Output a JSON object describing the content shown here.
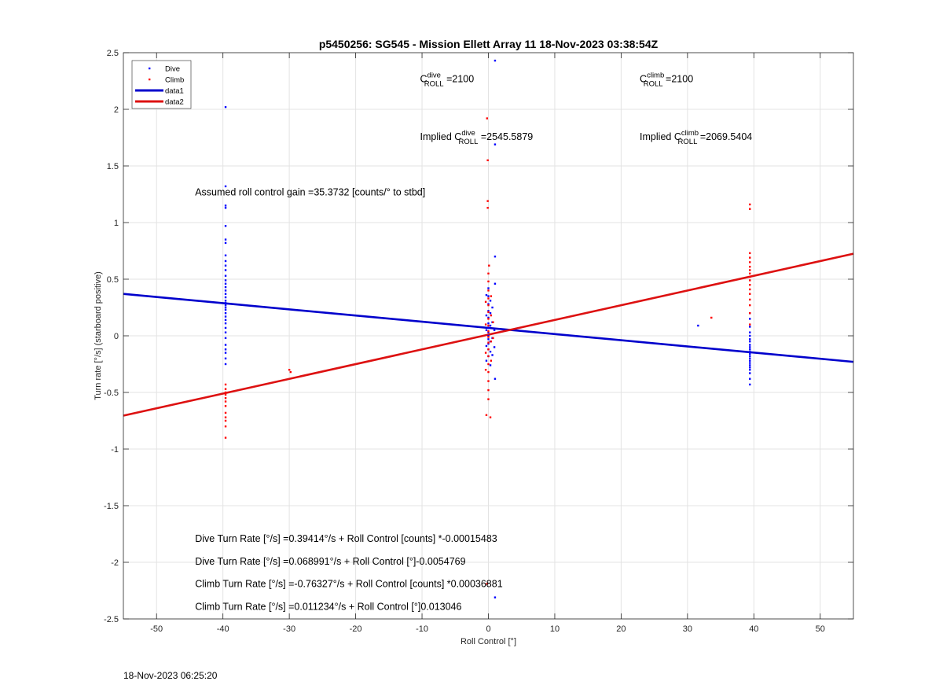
{
  "footer_timestamp": "18-Nov-2023 06:25:20",
  "chart_data": {
    "type": "scatter",
    "title": "p5450256: SG545 - Mission Ellett Array 11 18-Nov-2023 03:38:54Z",
    "xlabel": "Roll Control [°]",
    "ylabel": "Turn rate [°/s] (starboard positive)",
    "xlim": [
      -55,
      55
    ],
    "ylim": [
      -2.5,
      2.5
    ],
    "xticks": [
      -50,
      -40,
      -30,
      -20,
      -10,
      0,
      10,
      20,
      30,
      40,
      50
    ],
    "yticks": [
      2.5,
      2,
      1.5,
      1,
      0.5,
      0,
      -0.5,
      -1,
      -1.5,
      -2,
      -2.5
    ],
    "grid": true,
    "legend": {
      "location": "top-left",
      "entries": [
        {
          "label": "Dive",
          "style": "marker",
          "color": "#0000ff"
        },
        {
          "label": "Climb",
          "style": "marker",
          "color": "#ff0000"
        },
        {
          "label": "data1",
          "style": "line",
          "color": "#0000cc"
        },
        {
          "label": "data2",
          "style": "line",
          "color": "#dd1111"
        }
      ]
    },
    "lines": [
      {
        "name": "data1",
        "color": "#0000cc",
        "x": [
          -55,
          55
        ],
        "y": [
          0.37,
          -0.23
        ]
      },
      {
        "name": "data2",
        "color": "#dd1111",
        "x": [
          -55,
          55
        ],
        "y": [
          -0.705,
          0.725
        ]
      }
    ],
    "scatter_series": [
      {
        "name": "Dive",
        "color": "#0000ff",
        "points": [
          [
            -39.6,
            2.02
          ],
          [
            -39.6,
            1.32
          ],
          [
            -39.6,
            1.15
          ],
          [
            -39.6,
            1.13
          ],
          [
            -39.6,
            0.97
          ],
          [
            -39.6,
            0.85
          ],
          [
            -39.6,
            0.82
          ],
          [
            -39.6,
            0.71
          ],
          [
            -39.6,
            0.66
          ],
          [
            -39.6,
            0.62
          ],
          [
            -39.6,
            0.58
          ],
          [
            -39.6,
            0.53
          ],
          [
            -39.6,
            0.49
          ],
          [
            -39.6,
            0.46
          ],
          [
            -39.6,
            0.43
          ],
          [
            -39.6,
            0.4
          ],
          [
            -39.6,
            0.37
          ],
          [
            -39.6,
            0.34
          ],
          [
            -39.6,
            0.31
          ],
          [
            -39.6,
            0.29
          ],
          [
            -39.6,
            0.27
          ],
          [
            -39.6,
            0.25
          ],
          [
            -39.6,
            0.23
          ],
          [
            -39.6,
            0.2
          ],
          [
            -39.6,
            0.17
          ],
          [
            -39.6,
            0.14
          ],
          [
            -39.6,
            0.11
          ],
          [
            -39.6,
            0.07
          ],
          [
            -39.6,
            0.03
          ],
          [
            -39.6,
            -0.02
          ],
          [
            -39.6,
            -0.08
          ],
          [
            -39.6,
            -0.12
          ],
          [
            -39.6,
            -0.15
          ],
          [
            -39.6,
            -0.2
          ],
          [
            -39.6,
            -0.25
          ],
          [
            0.0,
            0.42
          ],
          [
            0.0,
            0.35
          ],
          [
            0.0,
            0.28
          ],
          [
            0.0,
            0.22
          ],
          [
            0.0,
            0.16
          ],
          [
            0.0,
            0.11
          ],
          [
            0.0,
            0.07
          ],
          [
            0.0,
            0.03
          ],
          [
            0.0,
            0.0
          ],
          [
            0.0,
            -0.03
          ],
          [
            0.0,
            -0.07
          ],
          [
            0.0,
            -0.12
          ],
          [
            0.0,
            -0.18
          ],
          [
            0.3,
            0.31
          ],
          [
            0.3,
            0.2
          ],
          [
            0.3,
            0.09
          ],
          [
            0.3,
            -0.05
          ],
          [
            0.3,
            -0.14
          ],
          [
            0.3,
            -0.26
          ],
          [
            -0.3,
            0.36
          ],
          [
            -0.3,
            0.18
          ],
          [
            -0.3,
            0.05
          ],
          [
            -0.3,
            -0.09
          ],
          [
            -0.3,
            -0.22
          ],
          [
            0.6,
            0.25
          ],
          [
            0.6,
            0.12
          ],
          [
            0.6,
            -0.02
          ],
          [
            0.6,
            -0.17
          ],
          [
            0.9,
            0.05
          ],
          [
            0.9,
            -0.1
          ],
          [
            1.0,
            2.43
          ],
          [
            1.0,
            1.69
          ],
          [
            1.0,
            0.7
          ],
          [
            1.0,
            0.46
          ],
          [
            1.0,
            -0.38
          ],
          [
            1.0,
            -2.31
          ],
          [
            31.6,
            0.09
          ],
          [
            39.4,
            0.2
          ],
          [
            39.4,
            0.15
          ],
          [
            39.4,
            0.08
          ],
          [
            39.4,
            0.03
          ],
          [
            39.4,
            0.0
          ],
          [
            39.4,
            -0.03
          ],
          [
            39.4,
            -0.05
          ],
          [
            39.4,
            -0.08
          ],
          [
            39.4,
            -0.1
          ],
          [
            39.4,
            -0.12
          ],
          [
            39.4,
            -0.14
          ],
          [
            39.4,
            -0.16
          ],
          [
            39.4,
            -0.18
          ],
          [
            39.4,
            -0.2
          ],
          [
            39.4,
            -0.22
          ],
          [
            39.4,
            -0.24
          ],
          [
            39.4,
            -0.26
          ],
          [
            39.4,
            -0.28
          ],
          [
            39.4,
            -0.3
          ],
          [
            39.4,
            -0.33
          ],
          [
            39.4,
            -0.38
          ],
          [
            39.4,
            -0.43
          ]
        ]
      },
      {
        "name": "Climb",
        "color": "#ff0000",
        "points": [
          [
            -39.6,
            -0.43
          ],
          [
            -39.6,
            -0.47
          ],
          [
            -39.6,
            -0.5
          ],
          [
            -39.6,
            -0.52
          ],
          [
            -39.6,
            -0.55
          ],
          [
            -39.6,
            -0.58
          ],
          [
            -39.6,
            -0.62
          ],
          [
            -39.6,
            -0.68
          ],
          [
            -39.6,
            -0.72
          ],
          [
            -39.6,
            -0.75
          ],
          [
            -39.6,
            -0.8
          ],
          [
            -39.6,
            -0.9
          ],
          [
            -30.0,
            -0.3
          ],
          [
            -29.8,
            -0.32
          ],
          [
            -0.2,
            1.92
          ],
          [
            -0.1,
            1.55
          ],
          [
            -0.1,
            1.19
          ],
          [
            -0.1,
            1.13
          ],
          [
            0.1,
            0.62
          ],
          [
            0.0,
            0.55
          ],
          [
            0.0,
            0.48
          ],
          [
            0.0,
            0.4
          ],
          [
            0.0,
            0.33
          ],
          [
            0.0,
            0.27
          ],
          [
            0.0,
            0.21
          ],
          [
            0.0,
            0.15
          ],
          [
            0.0,
            0.09
          ],
          [
            0.0,
            0.04
          ],
          [
            0.0,
            -0.01
          ],
          [
            0.0,
            -0.06
          ],
          [
            0.0,
            -0.12
          ],
          [
            0.0,
            -0.18
          ],
          [
            0.0,
            -0.25
          ],
          [
            0.0,
            -0.32
          ],
          [
            0.0,
            -0.4
          ],
          [
            0.0,
            -0.48
          ],
          [
            0.0,
            -0.56
          ],
          [
            -0.3,
            -0.7
          ],
          [
            0.3,
            -0.72
          ],
          [
            -0.4,
            0.3
          ],
          [
            -0.4,
            0.1
          ],
          [
            -0.4,
            -0.15
          ],
          [
            -0.4,
            -0.3
          ],
          [
            0.4,
            0.35
          ],
          [
            0.4,
            0.18
          ],
          [
            0.4,
            -0.05
          ],
          [
            0.4,
            -0.22
          ],
          [
            0.7,
            0.12
          ],
          [
            0.7,
            -0.02
          ],
          [
            -0.2,
            -2.19
          ],
          [
            33.6,
            0.16
          ],
          [
            39.4,
            1.16
          ],
          [
            39.4,
            1.12
          ],
          [
            39.4,
            0.73
          ],
          [
            39.4,
            0.69
          ],
          [
            39.4,
            0.65
          ],
          [
            39.4,
            0.61
          ],
          [
            39.4,
            0.58
          ],
          [
            39.4,
            0.55
          ],
          [
            39.4,
            0.52
          ],
          [
            39.4,
            0.49
          ],
          [
            39.4,
            0.45
          ],
          [
            39.4,
            0.41
          ],
          [
            39.4,
            0.37
          ],
          [
            39.4,
            0.32
          ],
          [
            39.4,
            0.27
          ],
          [
            39.4,
            0.2
          ],
          [
            39.4,
            0.1
          ]
        ]
      }
    ],
    "annotations": [
      {
        "id": "cdive",
        "base": "C",
        "sup": "dive",
        "sub": "ROLL",
        "value": " =2100",
        "x": -10.3,
        "y": 2.24
      },
      {
        "id": "cclimb",
        "base": "C",
        "sup": "climb",
        "sub": "ROLL",
        "value": " =2100",
        "x": 22.8,
        "y": 2.24
      },
      {
        "id": "implied-dive",
        "prefix": "Implied ",
        "base": "C",
        "sup": "dive",
        "sub": "ROLL",
        "value": " =2545.5879",
        "x": -10.3,
        "y": 1.73
      },
      {
        "id": "implied-climb",
        "prefix": "Implied ",
        "base": "C",
        "sup": "climb",
        "sub": "ROLL",
        "value": " =2069.5404",
        "x": 22.8,
        "y": 1.73
      },
      {
        "id": "gain",
        "text": "Assumed roll control gain =35.3732 [counts/° to stbd]",
        "x": -44.2,
        "y": 1.24
      },
      {
        "id": "eq1",
        "text": "Dive Turn Rate [°/s] =0.39414°/s + Roll Control [counts] *-0.00015483",
        "x": -44.2,
        "y": -1.82
      },
      {
        "id": "eq2",
        "text": "Dive Turn Rate [°/s] =0.068991°/s + Roll Control [°]-0.0054769",
        "x": -44.2,
        "y": -2.02
      },
      {
        "id": "eq3",
        "text": "Climb Turn Rate [°/s] =-0.76327°/s + Roll Control [counts] *0.00036881",
        "x": -44.2,
        "y": -2.22
      },
      {
        "id": "eq4",
        "text": "Climb Turn Rate [°/s] =0.011234°/s + Roll Control [°]0.013046",
        "x": -44.2,
        "y": -2.42
      }
    ]
  }
}
